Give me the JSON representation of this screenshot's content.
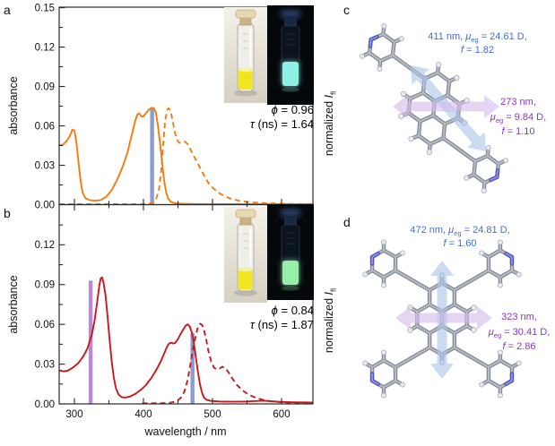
{
  "figure": {
    "background": "#ffffff"
  },
  "panel_labels": {
    "a": "a",
    "b": "b",
    "c": "c",
    "d": "d"
  },
  "axes": {
    "ylabel": "absorbance",
    "xlabel": "wavelength / nm",
    "right_ylabel": {
      "prefix": "normalized ",
      "symbol": "I",
      "subscript": "fl"
    }
  },
  "chart_data": [
    {
      "panel": "a",
      "type": "line",
      "xlabel": "wavelength / nm",
      "ylabel": "absorbance",
      "xlim": [
        278,
        645
      ],
      "ylim": [
        0,
        0.1504
      ],
      "x_ticks": [
        300,
        400,
        500,
        600
      ],
      "x_minor_ticks": [
        350,
        450,
        550
      ],
      "y_ticks": [
        {
          "v": 0.0,
          "label": "0.00"
        },
        {
          "v": 0.03,
          "label": "0.03"
        },
        {
          "v": 0.06,
          "label": "0.06"
        },
        {
          "v": 0.09,
          "label": "0.09"
        },
        {
          "v": 0.12,
          "label": "0.12"
        },
        {
          "v": 0.15,
          "label": "0.15"
        }
      ],
      "series": [
        {
          "name": "absorbance",
          "style": "solid",
          "color": "#f87a0d",
          "points": [
            [
              278,
              0.0455
            ],
            [
              283,
              0.0455
            ],
            [
              288,
              0.048
            ],
            [
              293,
              0.052
            ],
            [
              297,
              0.057
            ],
            [
              300,
              0.0565
            ],
            [
              303,
              0.047
            ],
            [
              306,
              0.032
            ],
            [
              309,
              0.018
            ],
            [
              312,
              0.009
            ],
            [
              316,
              0.005
            ],
            [
              322,
              0.0035
            ],
            [
              330,
              0.003
            ],
            [
              338,
              0.0035
            ],
            [
              346,
              0.006
            ],
            [
              354,
              0.011
            ],
            [
              362,
              0.019
            ],
            [
              370,
              0.029
            ],
            [
              377,
              0.04
            ],
            [
              383,
              0.053
            ],
            [
              388,
              0.064
            ],
            [
              391,
              0.0685
            ],
            [
              394,
              0.0695
            ],
            [
              397,
              0.0672
            ],
            [
              400,
              0.0672
            ],
            [
              404,
              0.07
            ],
            [
              408,
              0.0725
            ],
            [
              412,
              0.0737
            ],
            [
              415,
              0.0735
            ],
            [
              418,
              0.07
            ],
            [
              421,
              0.06
            ],
            [
              424,
              0.047
            ],
            [
              427,
              0.032
            ],
            [
              430,
              0.018
            ],
            [
              433,
              0.009
            ],
            [
              436,
              0.0045
            ],
            [
              440,
              0.002
            ],
            [
              446,
              0.001
            ],
            [
              455,
              0.0007
            ],
            [
              475,
              0.0005
            ],
            [
              520,
              0.0004
            ],
            [
              645,
              0.0004
            ]
          ]
        },
        {
          "name": "normalized fluorescence",
          "style": "dashed",
          "color": "#f87a0d",
          "points": [
            [
              278,
              0.0004
            ],
            [
              398,
              0.0004
            ],
            [
              408,
              0.0007
            ],
            [
              414,
              0.0015
            ],
            [
              418,
              0.004
            ],
            [
              422,
              0.01
            ],
            [
              425,
              0.022
            ],
            [
              428,
              0.042
            ],
            [
              431,
              0.062
            ],
            [
              434,
              0.0715
            ],
            [
              436,
              0.0735
            ],
            [
              439,
              0.072
            ],
            [
              442,
              0.065
            ],
            [
              445,
              0.056
            ],
            [
              448,
              0.05
            ],
            [
              452,
              0.047
            ],
            [
              456,
              0.0475
            ],
            [
              460,
              0.048
            ],
            [
              464,
              0.046
            ],
            [
              468,
              0.042
            ],
            [
              474,
              0.036
            ],
            [
              480,
              0.03
            ],
            [
              487,
              0.023
            ],
            [
              494,
              0.0165
            ],
            [
              502,
              0.012
            ],
            [
              512,
              0.008
            ],
            [
              524,
              0.005
            ],
            [
              538,
              0.003
            ],
            [
              555,
              0.0018
            ],
            [
              578,
              0.001
            ],
            [
              610,
              0.0006
            ],
            [
              645,
              0.0005
            ]
          ]
        }
      ],
      "transition_bars": [
        {
          "nm": 412.5,
          "height": 0.0737,
          "color": "#8095cc"
        }
      ]
    },
    {
      "panel": "b",
      "type": "line",
      "xlabel": "wavelength / nm",
      "ylabel": "absorbance",
      "xlim": [
        278,
        645
      ],
      "ylim": [
        0,
        0.1503
      ],
      "x_ticks": [
        300,
        400,
        500,
        600
      ],
      "x_minor_ticks": [
        350,
        450,
        550
      ],
      "y_ticks": [
        {
          "v": 0.0,
          "label": "0.00"
        },
        {
          "v": 0.03,
          "label": "0.03"
        },
        {
          "v": 0.06,
          "label": "0.06"
        },
        {
          "v": 0.09,
          "label": "0.09"
        },
        {
          "v": 0.12,
          "label": "0.12"
        }
      ],
      "series": [
        {
          "name": "absorbance",
          "style": "solid",
          "color": "#c9191c",
          "points": [
            [
              278,
              0.0253
            ],
            [
              284,
              0.0245
            ],
            [
              290,
              0.025
            ],
            [
              298,
              0.0275
            ],
            [
              306,
              0.031
            ],
            [
              313,
              0.036
            ],
            [
              319,
              0.042
            ],
            [
              325,
              0.052
            ],
            [
              329,
              0.062
            ],
            [
              333,
              0.077
            ],
            [
              336,
              0.089
            ],
            [
              338,
              0.0945
            ],
            [
              340,
              0.0955
            ],
            [
              342,
              0.092
            ],
            [
              345,
              0.082
            ],
            [
              348,
              0.066
            ],
            [
              351,
              0.048
            ],
            [
              354,
              0.032
            ],
            [
              357,
              0.02
            ],
            [
              360,
              0.012
            ],
            [
              364,
              0.007
            ],
            [
              368,
              0.0052
            ],
            [
              373,
              0.0048
            ],
            [
              380,
              0.0055
            ],
            [
              388,
              0.0075
            ],
            [
              396,
              0.0105
            ],
            [
              404,
              0.0145
            ],
            [
              412,
              0.02
            ],
            [
              419,
              0.026
            ],
            [
              425,
              0.032
            ],
            [
              430,
              0.038
            ],
            [
              434,
              0.043
            ],
            [
              437,
              0.0455
            ],
            [
              440,
              0.0462
            ],
            [
              443,
              0.0455
            ],
            [
              446,
              0.046
            ],
            [
              450,
              0.049
            ],
            [
              454,
              0.053
            ],
            [
              458,
              0.0565
            ],
            [
              461,
              0.059
            ],
            [
              464,
              0.06
            ],
            [
              467,
              0.0585
            ],
            [
              470,
              0.054
            ],
            [
              473,
              0.046
            ],
            [
              476,
              0.035
            ],
            [
              479,
              0.024
            ],
            [
              482,
              0.0145
            ],
            [
              485,
              0.008
            ],
            [
              488,
              0.0045
            ],
            [
              492,
              0.003
            ],
            [
              498,
              0.0022
            ],
            [
              510,
              0.0018
            ],
            [
              530,
              0.0016
            ],
            [
              550,
              0.0018
            ],
            [
              565,
              0.0022
            ],
            [
              575,
              0.0024
            ],
            [
              585,
              0.002
            ],
            [
              600,
              0.0015
            ],
            [
              620,
              0.0012
            ],
            [
              645,
              0.001
            ]
          ]
        },
        {
          "name": "normalized fluorescence",
          "style": "dashed",
          "color": "#c9191c",
          "points": [
            [
              398,
              0.0004
            ],
            [
              430,
              0.0006
            ],
            [
              440,
              0.001
            ],
            [
              448,
              0.002
            ],
            [
              454,
              0.0045
            ],
            [
              459,
              0.009
            ],
            [
              464,
              0.018
            ],
            [
              468,
              0.03
            ],
            [
              472,
              0.042
            ],
            [
              476,
              0.052
            ],
            [
              479,
              0.058
            ],
            [
              482,
              0.0605
            ],
            [
              485,
              0.0595
            ],
            [
              488,
              0.055
            ],
            [
              491,
              0.048
            ],
            [
              494,
              0.04
            ],
            [
              498,
              0.032
            ],
            [
              502,
              0.0275
            ],
            [
              506,
              0.026
            ],
            [
              510,
              0.0265
            ],
            [
              514,
              0.028
            ],
            [
              518,
              0.0275
            ],
            [
              523,
              0.024
            ],
            [
              529,
              0.019
            ],
            [
              536,
              0.014
            ],
            [
              544,
              0.01
            ],
            [
              553,
              0.0068
            ],
            [
              563,
              0.0045
            ],
            [
              575,
              0.0028
            ],
            [
              590,
              0.0016
            ],
            [
              610,
              0.001
            ],
            [
              645,
              0.0007
            ]
          ]
        }
      ],
      "transition_bars": [
        {
          "nm": 323.5,
          "height": 0.093,
          "color": "#b57fd2"
        },
        {
          "nm": 471,
          "height": 0.0535,
          "color": "#8095cc"
        }
      ]
    }
  ],
  "insets": {
    "a": {
      "left_photo": "vial in daylight with yellow solution",
      "right_photo": "vial under UV with cyan fluorescence",
      "daylight_liquid": "#f1e51f",
      "uv_glow": "#8df0e4",
      "phi": {
        "sym": "ϕ",
        "rest": " = 0.96"
      },
      "tau": {
        "sym": "τ",
        "rest": " (ns) = 1.64"
      }
    },
    "b": {
      "left_photo": "vial in daylight with yellow solution",
      "right_photo": "vial under UV with green fluorescence",
      "daylight_liquid": "#f1e51f",
      "uv_glow": "#97efa5",
      "phi": {
        "sym": "ϕ",
        "rest": " = 0.84"
      },
      "tau": {
        "sym": "τ",
        "rest": " (ns) = 1.87"
      }
    }
  },
  "annotations": {
    "c_blue": {
      "wl": "411 nm, ",
      "mu": "μ",
      "mu_sub": "eg",
      "mu_rest": " = 24.61 D,",
      "f_sym": "f",
      "f_rest": " = 1.82"
    },
    "c_purple": {
      "wl": "273 nm,",
      "mu": "μ",
      "mu_sub": "eg",
      "mu_rest": " = 9.84 D,",
      "f_sym": "f",
      "f_rest": " = 1.10"
    },
    "d_blue": {
      "wl": "472 nm, ",
      "mu": "μ",
      "mu_sub": "eg",
      "mu_rest": " = 24.81 D,",
      "f_sym": "f",
      "f_rest": " = 1.60"
    },
    "d_purple": {
      "wl": "323 nm,",
      "mu": "μ",
      "mu_sub": "eg",
      "mu_rest": " = 30.41 D,",
      "f_sym": "f",
      "f_rest": " = 2.86"
    }
  },
  "molecules": {
    "c": {
      "name": "1,6-di(pyridin-4-yl)pyrene",
      "pyridyl_count": 2
    },
    "d": {
      "name": "1,3,6,8-tetra(pyridin-4-yl)pyrene",
      "pyridyl_count": 4
    }
  },
  "colors": {
    "blue_arrow": "#a9c3e6",
    "purple_arrow": "#d3bbec",
    "blue_text": "#3f6fd1",
    "purple_text": "#8a35c8",
    "stick": "#7e8591",
    "stick_hl": "#b6bcc7",
    "h_ball": "#e9ecf0",
    "n_atom": "#4a52c4",
    "frame": "#2b2b2b"
  }
}
